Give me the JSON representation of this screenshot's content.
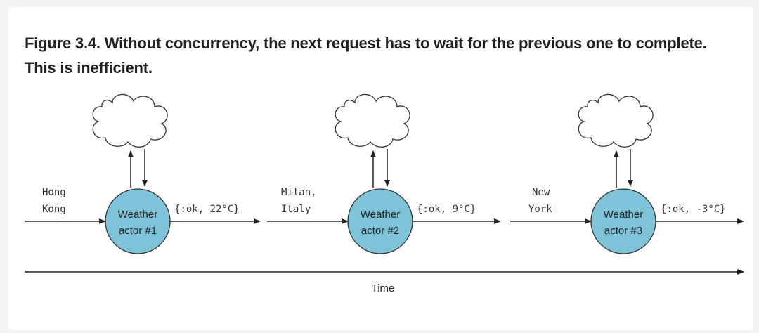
{
  "figure": {
    "caption": "Figure 3.4. Without concurrency, the next request has to wait for the previous one to complete. This is inefficient."
  },
  "inputs": [
    {
      "line1": "Hong",
      "line2": "Kong"
    },
    {
      "line1": "Milan,",
      "line2": "Italy"
    },
    {
      "line1": "New",
      "line2": "York"
    }
  ],
  "actors": [
    {
      "line1": "Weather",
      "line2": "actor #1",
      "color": "#7ec3d8"
    },
    {
      "line1": "Weather",
      "line2": "actor #2",
      "color": "#7ec3d8"
    },
    {
      "line1": "Weather",
      "line2": "actor #3",
      "color": "#7ec3d8"
    }
  ],
  "results": [
    "{:ok, 22°C}",
    "{:ok, 9°C}",
    "{:ok, -3°C}"
  ],
  "timeline": {
    "label": "Time"
  }
}
